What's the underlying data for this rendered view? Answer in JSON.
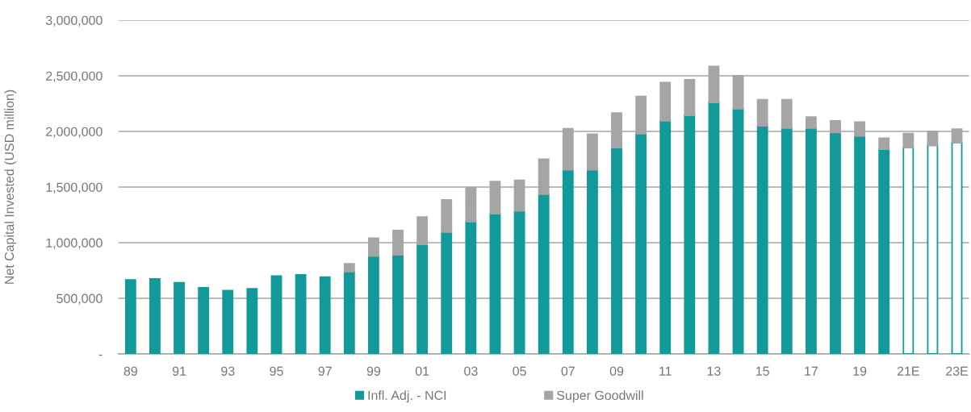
{
  "chart_data": {
    "type": "bar",
    "stacked": true,
    "ylabel": "Net Capital Invested (USD million)",
    "categories": [
      "89",
      null,
      "91",
      null,
      "93",
      null,
      "95",
      null,
      "97",
      null,
      "99",
      null,
      "01",
      null,
      "03",
      null,
      "05",
      null,
      "07",
      null,
      "09",
      null,
      "11",
      null,
      "13",
      null,
      "15",
      null,
      "17",
      null,
      "19",
      null,
      "21E",
      null,
      "23E"
    ],
    "ylim": [
      0,
      3000000
    ],
    "yticks": [
      {
        "value": 0,
        "label": "-"
      },
      {
        "value": 500000,
        "label": "500,000"
      },
      {
        "value": 1000000,
        "label": "1,000,000"
      },
      {
        "value": 1500000,
        "label": "1,500,000"
      },
      {
        "value": 2000000,
        "label": "2,000,000"
      },
      {
        "value": 2500000,
        "label": "2,500,000"
      },
      {
        "value": 3000000,
        "label": "3,000,000"
      }
    ],
    "grid": "y",
    "legend": "bottom",
    "series": [
      {
        "name": "Infl. Adj. - NCI",
        "color": "#12999a",
        "colors": [
          "#12999a",
          "#12999a",
          "#12999a",
          "#12999a",
          "#12999a",
          "#12999a",
          "#12999a",
          "#12999a",
          "#12999a",
          "#12999a",
          "#12999a",
          "#12999a",
          "#12999a",
          "#12999a",
          "#12999a",
          "#12999a",
          "#12999a",
          "#12999a",
          "#12999a",
          "#12999a",
          "#12999a",
          "#12999a",
          "#12999a",
          "#12999a",
          "#12999a",
          "#12999a",
          "#12999a",
          "#12999a",
          "#12999a",
          "#12999a",
          "#12999a",
          "#12999a",
          "#ffffff",
          "#ffffff",
          "#ffffff"
        ],
        "values": [
          665000,
          675000,
          640000,
          595000,
          570000,
          585000,
          700000,
          710000,
          690000,
          740000,
          880000,
          890000,
          985000,
          1095000,
          1190000,
          1260000,
          1285000,
          1435000,
          1655000,
          1655000,
          1855000,
          1980000,
          2095000,
          2145000,
          2260000,
          2205000,
          2050000,
          2030000,
          2030000,
          1990000,
          1960000,
          1840000,
          1855000,
          1875000,
          1900000
        ]
      },
      {
        "name": "Super Goodwill",
        "color": "#a5a5a5",
        "values": [
          null,
          null,
          null,
          null,
          null,
          null,
          null,
          null,
          null,
          70000,
          160000,
          220000,
          245000,
          290000,
          305000,
          290000,
          275000,
          315000,
          370000,
          320000,
          310000,
          335000,
          345000,
          320000,
          325000,
          295000,
          235000,
          255000,
          100000,
          105000,
          125000,
          100000,
          125000,
          125000,
          120000
        ]
      }
    ]
  }
}
